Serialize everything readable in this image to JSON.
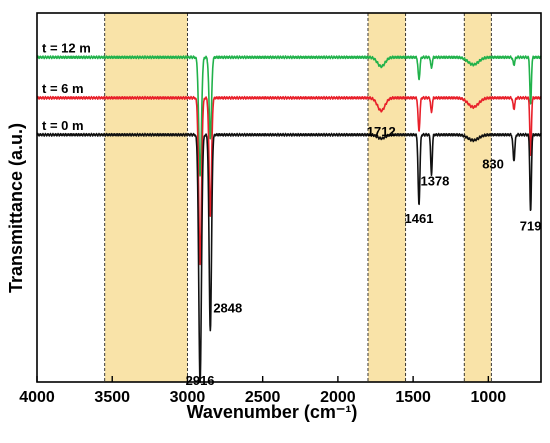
{
  "chart_data": {
    "type": "line",
    "xlabel": "Wavenumber (cm⁻¹)",
    "ylabel": "Transmittance (a.u.)",
    "xlim": [
      4000,
      650
    ],
    "x_reversed": true,
    "x_ticks": [
      {
        "value": 4000,
        "label": "4000"
      },
      {
        "value": 3500,
        "label": "3500"
      },
      {
        "value": 3000,
        "label": "3000"
      },
      {
        "value": 2500,
        "label": "2500"
      },
      {
        "value": 2000,
        "label": "2000"
      },
      {
        "value": 1500,
        "label": "1500"
      },
      {
        "value": 1000,
        "label": "1000"
      }
    ],
    "y_ticks_shown": false,
    "highlight_bands": [
      {
        "from": 3550,
        "to": 3000,
        "color": "#f9e3a8"
      },
      {
        "from": 1800,
        "to": 1550,
        "color": "#f9e3a8"
      },
      {
        "from": 1160,
        "to": 980,
        "color": "#f9e3a8"
      }
    ],
    "series": [
      {
        "name": "t = 12 m",
        "color": "#21b24b",
        "baseline": 0.88,
        "peaks": [
          {
            "x": 2916,
            "depth": 0.32,
            "width": 9
          },
          {
            "x": 2848,
            "depth": 0.22,
            "width": 8
          },
          {
            "x": 1712,
            "depth": 0.025,
            "width": 25
          },
          {
            "x": 1461,
            "depth": 0.06,
            "width": 6
          },
          {
            "x": 1378,
            "depth": 0.03,
            "width": 5
          },
          {
            "x": 1100,
            "depth": 0.02,
            "width": 35
          },
          {
            "x": 830,
            "depth": 0.02,
            "width": 6
          },
          {
            "x": 719,
            "depth": 0.13,
            "width": 5
          }
        ]
      },
      {
        "name": "t = 6 m",
        "color": "#e8202a",
        "baseline": 0.77,
        "peaks": [
          {
            "x": 2916,
            "depth": 0.45,
            "width": 9
          },
          {
            "x": 2848,
            "depth": 0.32,
            "width": 8
          },
          {
            "x": 1712,
            "depth": 0.035,
            "width": 25
          },
          {
            "x": 1461,
            "depth": 0.09,
            "width": 6
          },
          {
            "x": 1378,
            "depth": 0.04,
            "width": 5
          },
          {
            "x": 1100,
            "depth": 0.025,
            "width": 35
          },
          {
            "x": 830,
            "depth": 0.03,
            "width": 6
          },
          {
            "x": 719,
            "depth": 0.16,
            "width": 5
          }
        ]
      },
      {
        "name": "t = 0 m",
        "color": "#111111",
        "baseline": 0.67,
        "peaks": [
          {
            "x": 2916,
            "depth": 0.67,
            "width": 9
          },
          {
            "x": 2848,
            "depth": 0.53,
            "width": 8
          },
          {
            "x": 1712,
            "depth": 0.01,
            "width": 25
          },
          {
            "x": 1461,
            "depth": 0.19,
            "width": 6
          },
          {
            "x": 1378,
            "depth": 0.11,
            "width": 5
          },
          {
            "x": 1100,
            "depth": 0.015,
            "width": 35
          },
          {
            "x": 830,
            "depth": 0.07,
            "width": 6
          },
          {
            "x": 719,
            "depth": 0.21,
            "width": 5
          }
        ]
      }
    ],
    "peak_labels": [
      {
        "text": "2916",
        "x": 2916
      },
      {
        "text": "2848",
        "x": 2848
      },
      {
        "text": "1712",
        "x": 1712
      },
      {
        "text": "1461",
        "x": 1461
      },
      {
        "text": "1378",
        "x": 1378
      },
      {
        "text": "830",
        "x": 830
      },
      {
        "text": "719",
        "x": 719
      }
    ]
  }
}
